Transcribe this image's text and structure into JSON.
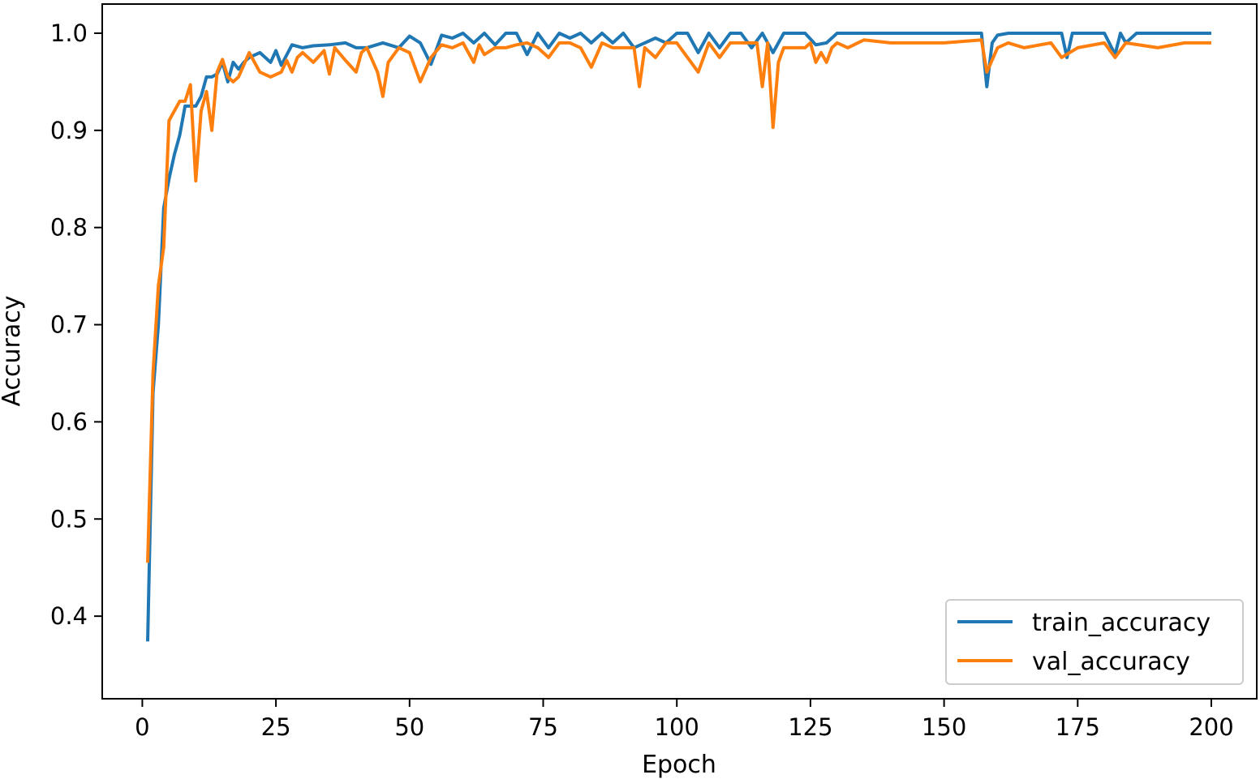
{
  "chart_data": {
    "type": "line",
    "title": "",
    "xlabel": "Epoch",
    "ylabel": "Accuracy",
    "xlim": [
      -7.5,
      208.5
    ],
    "ylim": [
      0.315,
      1.03
    ],
    "xticks": [
      0,
      25,
      50,
      75,
      100,
      125,
      150,
      175,
      200
    ],
    "yticks": [
      0.4,
      0.5,
      0.6,
      0.7,
      0.8,
      0.9,
      1.0
    ],
    "xtick_labels": [
      "0",
      "25",
      "50",
      "75",
      "100",
      "125",
      "150",
      "175",
      "200"
    ],
    "ytick_labels": [
      "0.4",
      "0.5",
      "0.6",
      "0.7",
      "0.8",
      "0.9",
      "1.0"
    ],
    "grid": false,
    "legend_position": "lower-right",
    "series": [
      {
        "name": "train_accuracy",
        "color": "#1f77b4",
        "x": [
          1,
          2,
          3,
          4,
          5,
          6,
          7,
          8,
          9,
          10,
          11,
          12,
          13,
          14,
          15,
          16,
          17,
          18,
          19,
          20,
          22,
          24,
          25,
          26,
          28,
          30,
          32,
          35,
          38,
          40,
          42,
          45,
          48,
          50,
          52,
          54,
          56,
          58,
          60,
          62,
          64,
          66,
          68,
          70,
          72,
          74,
          76,
          78,
          80,
          82,
          84,
          86,
          88,
          90,
          92,
          94,
          96,
          98,
          100,
          102,
          104,
          106,
          108,
          110,
          112,
          114,
          116,
          118,
          120,
          122,
          124,
          126,
          128,
          130,
          132,
          134,
          136,
          140,
          145,
          150,
          155,
          157,
          158,
          159,
          160,
          162,
          165,
          170,
          172,
          173,
          174,
          175,
          180,
          182,
          183,
          184,
          186,
          190,
          195,
          200
        ],
        "values": [
          0.374,
          0.63,
          0.7,
          0.82,
          0.85,
          0.875,
          0.895,
          0.925,
          0.925,
          0.925,
          0.935,
          0.955,
          0.955,
          0.958,
          0.97,
          0.95,
          0.97,
          0.963,
          0.97,
          0.975,
          0.98,
          0.97,
          0.982,
          0.967,
          0.988,
          0.985,
          0.987,
          0.988,
          0.99,
          0.985,
          0.985,
          0.99,
          0.985,
          0.997,
          0.99,
          0.968,
          0.998,
          0.995,
          1.0,
          0.99,
          1.0,
          0.988,
          1.0,
          1.0,
          0.978,
          1.0,
          0.985,
          1.0,
          0.995,
          1.0,
          0.99,
          1.0,
          0.99,
          1.0,
          0.985,
          0.99,
          0.995,
          0.99,
          1.0,
          1.0,
          0.98,
          1.0,
          0.985,
          1.0,
          1.0,
          0.985,
          1.0,
          0.98,
          1.0,
          1.0,
          1.0,
          0.988,
          0.99,
          1.0,
          1.0,
          1.0,
          1.0,
          1.0,
          1.0,
          1.0,
          1.0,
          1.0,
          0.945,
          0.99,
          0.998,
          1.0,
          1.0,
          1.0,
          1.0,
          0.975,
          1.0,
          1.0,
          1.0,
          0.978,
          1.0,
          0.99,
          1.0,
          1.0,
          1.0,
          1.0
        ]
      },
      {
        "name": "val_accuracy",
        "color": "#ff7f0e",
        "x": [
          1,
          2,
          3,
          4,
          5,
          6,
          7,
          8,
          9,
          10,
          11,
          12,
          13,
          14,
          15,
          16,
          17,
          18,
          20,
          22,
          24,
          26,
          27,
          28,
          29,
          30,
          32,
          34,
          35,
          36,
          38,
          40,
          41,
          42,
          44,
          45,
          46,
          48,
          50,
          52,
          54,
          56,
          58,
          60,
          62,
          63,
          64,
          66,
          68,
          70,
          72,
          74,
          76,
          78,
          80,
          82,
          84,
          86,
          88,
          90,
          92,
          93,
          94,
          96,
          98,
          100,
          104,
          106,
          108,
          110,
          112,
          115,
          116,
          117,
          118,
          119,
          120,
          124,
          125,
          126,
          127,
          128,
          129,
          130,
          132,
          135,
          140,
          150,
          157,
          158,
          160,
          162,
          165,
          170,
          172,
          175,
          180,
          182,
          184,
          190,
          195,
          200
        ],
        "values": [
          0.455,
          0.65,
          0.74,
          0.78,
          0.91,
          0.92,
          0.93,
          0.93,
          0.947,
          0.848,
          0.92,
          0.94,
          0.9,
          0.96,
          0.973,
          0.955,
          0.95,
          0.955,
          0.98,
          0.96,
          0.955,
          0.96,
          0.972,
          0.96,
          0.975,
          0.98,
          0.97,
          0.982,
          0.958,
          0.985,
          0.972,
          0.96,
          0.98,
          0.985,
          0.96,
          0.935,
          0.97,
          0.985,
          0.98,
          0.95,
          0.975,
          0.988,
          0.985,
          0.99,
          0.97,
          0.988,
          0.978,
          0.985,
          0.985,
          0.988,
          0.99,
          0.985,
          0.975,
          0.99,
          0.99,
          0.985,
          0.965,
          0.99,
          0.985,
          0.985,
          0.985,
          0.945,
          0.985,
          0.975,
          0.99,
          0.99,
          0.96,
          0.99,
          0.975,
          0.99,
          0.99,
          0.99,
          0.945,
          0.99,
          0.903,
          0.97,
          0.985,
          0.985,
          0.99,
          0.97,
          0.98,
          0.97,
          0.985,
          0.99,
          0.985,
          0.993,
          0.99,
          0.99,
          0.993,
          0.96,
          0.985,
          0.99,
          0.985,
          0.99,
          0.975,
          0.985,
          0.99,
          0.975,
          0.99,
          0.985,
          0.99,
          0.99
        ]
      }
    ]
  }
}
